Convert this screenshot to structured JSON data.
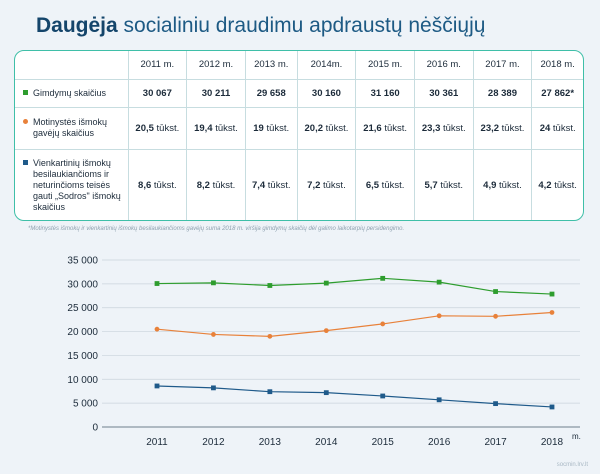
{
  "title": {
    "bold": "Daugėja",
    "rest": " socialiniu draudimu apdraustų nėščiųjų"
  },
  "table": {
    "years": [
      "2011 m.",
      "2012 m.",
      "2013 m.",
      "2014m.",
      "2015 m.",
      "2016 m.",
      "2017 m.",
      "2018 m."
    ],
    "rows": [
      {
        "label": "Gimdymų skaičius",
        "marker": "square",
        "color": "#2e9d2e",
        "cells": [
          {
            "num": "30 067",
            "unit": ""
          },
          {
            "num": "30 211",
            "unit": ""
          },
          {
            "num": "29 658",
            "unit": ""
          },
          {
            "num": "30 160",
            "unit": ""
          },
          {
            "num": "31 160",
            "unit": ""
          },
          {
            "num": "30 361",
            "unit": ""
          },
          {
            "num": "28 389",
            "unit": ""
          },
          {
            "num": "27 862*",
            "unit": ""
          }
        ]
      },
      {
        "label": "Motinystės išmokų gavėjų skaičius",
        "marker": "dot",
        "color": "#e8813a",
        "cells": [
          {
            "num": "20,5",
            "unit": " tūkst."
          },
          {
            "num": "19,4",
            "unit": " tūkst."
          },
          {
            "num": "19",
            "unit": " tūkst."
          },
          {
            "num": "20,2",
            "unit": " tūkst."
          },
          {
            "num": "21,6",
            "unit": " tūkst."
          },
          {
            "num": "23,3",
            "unit": " tūkst."
          },
          {
            "num": "23,2",
            "unit": " tūkst."
          },
          {
            "num": "24",
            "unit": " tūkst."
          }
        ]
      },
      {
        "label": "Vienkartinių išmokų besilaukiančioms ir neturinčioms teisės gauti „Sodros\" išmokų skaičius",
        "marker": "square",
        "color": "#1f5a8a",
        "cells": [
          {
            "num": "8,6",
            "unit": " tūkst."
          },
          {
            "num": "8,2",
            "unit": " tūkst."
          },
          {
            "num": "7,4",
            "unit": " tūkst."
          },
          {
            "num": "7,2",
            "unit": " tūkst."
          },
          {
            "num": "6,5",
            "unit": " tūkst."
          },
          {
            "num": "5,7",
            "unit": " tūkst."
          },
          {
            "num": "4,9",
            "unit": " tūkst."
          },
          {
            "num": "4,2",
            "unit": " tūkst."
          }
        ]
      }
    ]
  },
  "footnote": "*Motinystės išmokų ir vienkartinių išmokų besilaukiančioms gavėjų suma 2018 m. viršija gimdymų skaičių dėl galimo laikotarpių persidengimo.",
  "source": "socmin.lrv.lt",
  "chart_data": {
    "type": "line",
    "x": [
      2011,
      2012,
      2013,
      2014,
      2015,
      2016,
      2017,
      2018
    ],
    "x_unit": "m.",
    "yticks": [
      "0",
      "5 000",
      "10 000",
      "15 000",
      "20 000",
      "25 000",
      "30 000",
      "35 000"
    ],
    "ylim": [
      0,
      35000
    ],
    "grid": true,
    "series": [
      {
        "key": "births",
        "marker": "square",
        "color": "#2e9d2e",
        "values": [
          30067,
          30211,
          29658,
          30160,
          31160,
          30361,
          28389,
          27862
        ]
      },
      {
        "key": "maternity",
        "marker": "circle",
        "color": "#e8813a",
        "values": [
          20500,
          19400,
          19000,
          20200,
          21600,
          23300,
          23200,
          24000
        ]
      },
      {
        "key": "lumpsum",
        "marker": "square",
        "color": "#1f5a8a",
        "values": [
          8600,
          8200,
          7400,
          7200,
          6500,
          5700,
          4900,
          4200
        ]
      }
    ]
  }
}
